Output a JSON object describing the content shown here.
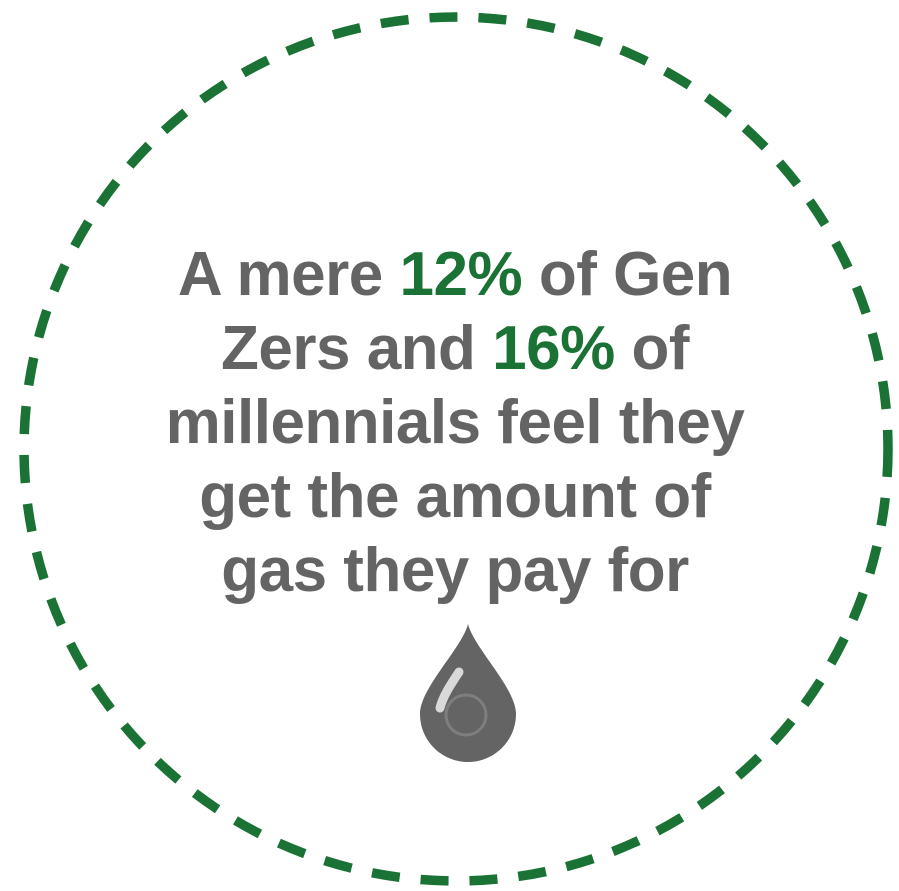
{
  "statement": {
    "line1": {
      "pre": "A mere ",
      "stat": "12%",
      "post": " of Gen"
    },
    "line2": {
      "pre": "Zers and ",
      "stat": "16%",
      "post": " of"
    },
    "line3": "millennials feel they",
    "line4": "get the amount of",
    "line5": "gas they pay for"
  },
  "colors": {
    "accent": "#1a7234",
    "text": "#646464",
    "border": "#1a7234",
    "drop": "#646464"
  },
  "icons": {
    "ring": "dashed-circle-border",
    "drop": "gas-drop-icon"
  }
}
